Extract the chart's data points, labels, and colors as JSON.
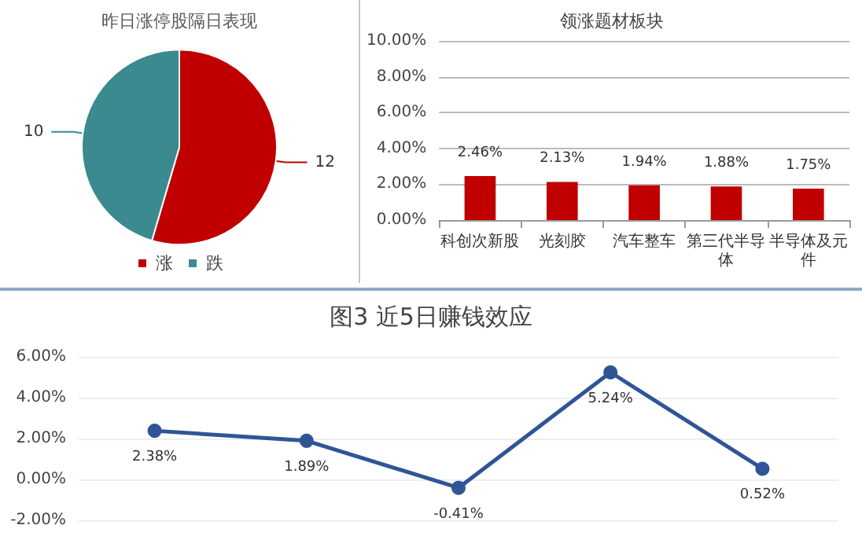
{
  "chart_data": [
    {
      "type": "pie",
      "title": "昨日涨停股隔日表现",
      "categories": [
        "涨",
        "跌"
      ],
      "values": [
        12,
        10
      ],
      "colors": [
        "#c00000",
        "#3a8a8f"
      ],
      "data_labels": true,
      "legend": "bottom"
    },
    {
      "type": "bar",
      "title": "领涨题材板块",
      "categories": [
        "科创次新股",
        "光刻胶",
        "汽车整车",
        "第三代半导体",
        "半导体及元件"
      ],
      "values": [
        2.46,
        2.13,
        1.94,
        1.88,
        1.75
      ],
      "color": "#c00000",
      "value_labels": [
        "2.46%",
        "2.13%",
        "1.94%",
        "1.88%",
        "1.75%"
      ],
      "ylim": [
        0,
        10
      ],
      "yticks": [
        {
          "value": 0,
          "label": "0.00%"
        },
        {
          "value": 2,
          "label": "2.00%"
        },
        {
          "value": 4,
          "label": "4.00%"
        },
        {
          "value": 6,
          "label": "6.00%"
        },
        {
          "value": 8,
          "label": "8.00%"
        },
        {
          "value": 10,
          "label": "10.00%"
        }
      ],
      "grid": "y"
    },
    {
      "type": "line",
      "title": "图3 近5日赚钱效应",
      "categories": [
        null,
        null,
        null,
        null,
        null
      ],
      "values": [
        2.38,
        1.89,
        -0.41,
        5.24,
        0.52
      ],
      "color": "#2f5597",
      "value_labels": [
        "2.38%",
        "1.89%",
        "-0.41%",
        "5.24%",
        "0.52%"
      ],
      "ylim": [
        -2,
        6
      ],
      "yticks": [
        {
          "value": -2,
          "label": "-2.00%"
        },
        {
          "value": 0,
          "label": "0.00%"
        },
        {
          "value": 2,
          "label": "2.00%"
        },
        {
          "value": 4,
          "label": "4.00%"
        },
        {
          "value": 6,
          "label": "6.00%"
        }
      ],
      "grid": "y",
      "marker": "circle",
      "tick_labels": "y"
    }
  ]
}
